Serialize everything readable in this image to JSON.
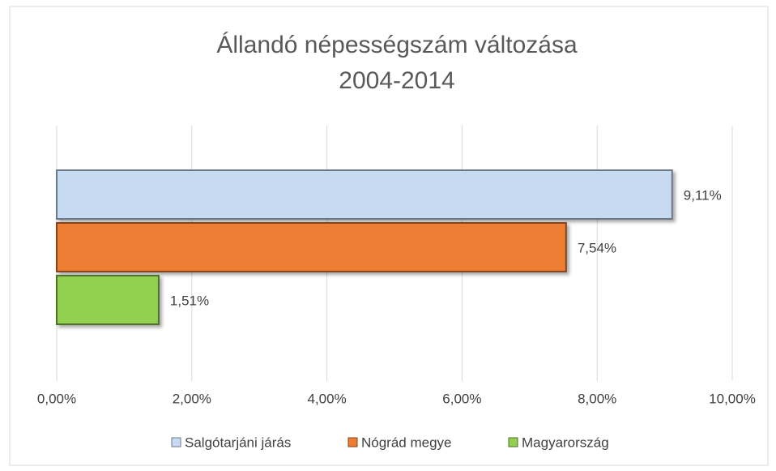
{
  "chart_data": {
    "type": "bar",
    "orientation": "horizontal",
    "title": "Állandó népességszám változása",
    "subtitle": "2004-2014",
    "series": [
      {
        "name": "Salgótarjáni járás",
        "color": "#c6dbf2",
        "values": [
          9.11
        ],
        "value_labels": [
          "9,11%"
        ]
      },
      {
        "name": "Nógrád megye",
        "color": "#ed7d31",
        "values": [
          7.54
        ],
        "value_labels": [
          "7,54%"
        ]
      },
      {
        "name": "Magyarország",
        "color": "#92d050",
        "values": [
          1.51
        ],
        "value_labels": [
          "1,51%"
        ]
      }
    ],
    "xlim": [
      0,
      10
    ],
    "xticks": [
      {
        "value": 0,
        "label": "0,00%"
      },
      {
        "value": 2,
        "label": "2,00%"
      },
      {
        "value": 4,
        "label": "4,00%"
      },
      {
        "value": 6,
        "label": "6,00%"
      },
      {
        "value": 8,
        "label": "8,00%"
      },
      {
        "value": 10,
        "label": "10,00%"
      }
    ],
    "grid": true,
    "legend": "bottom"
  }
}
